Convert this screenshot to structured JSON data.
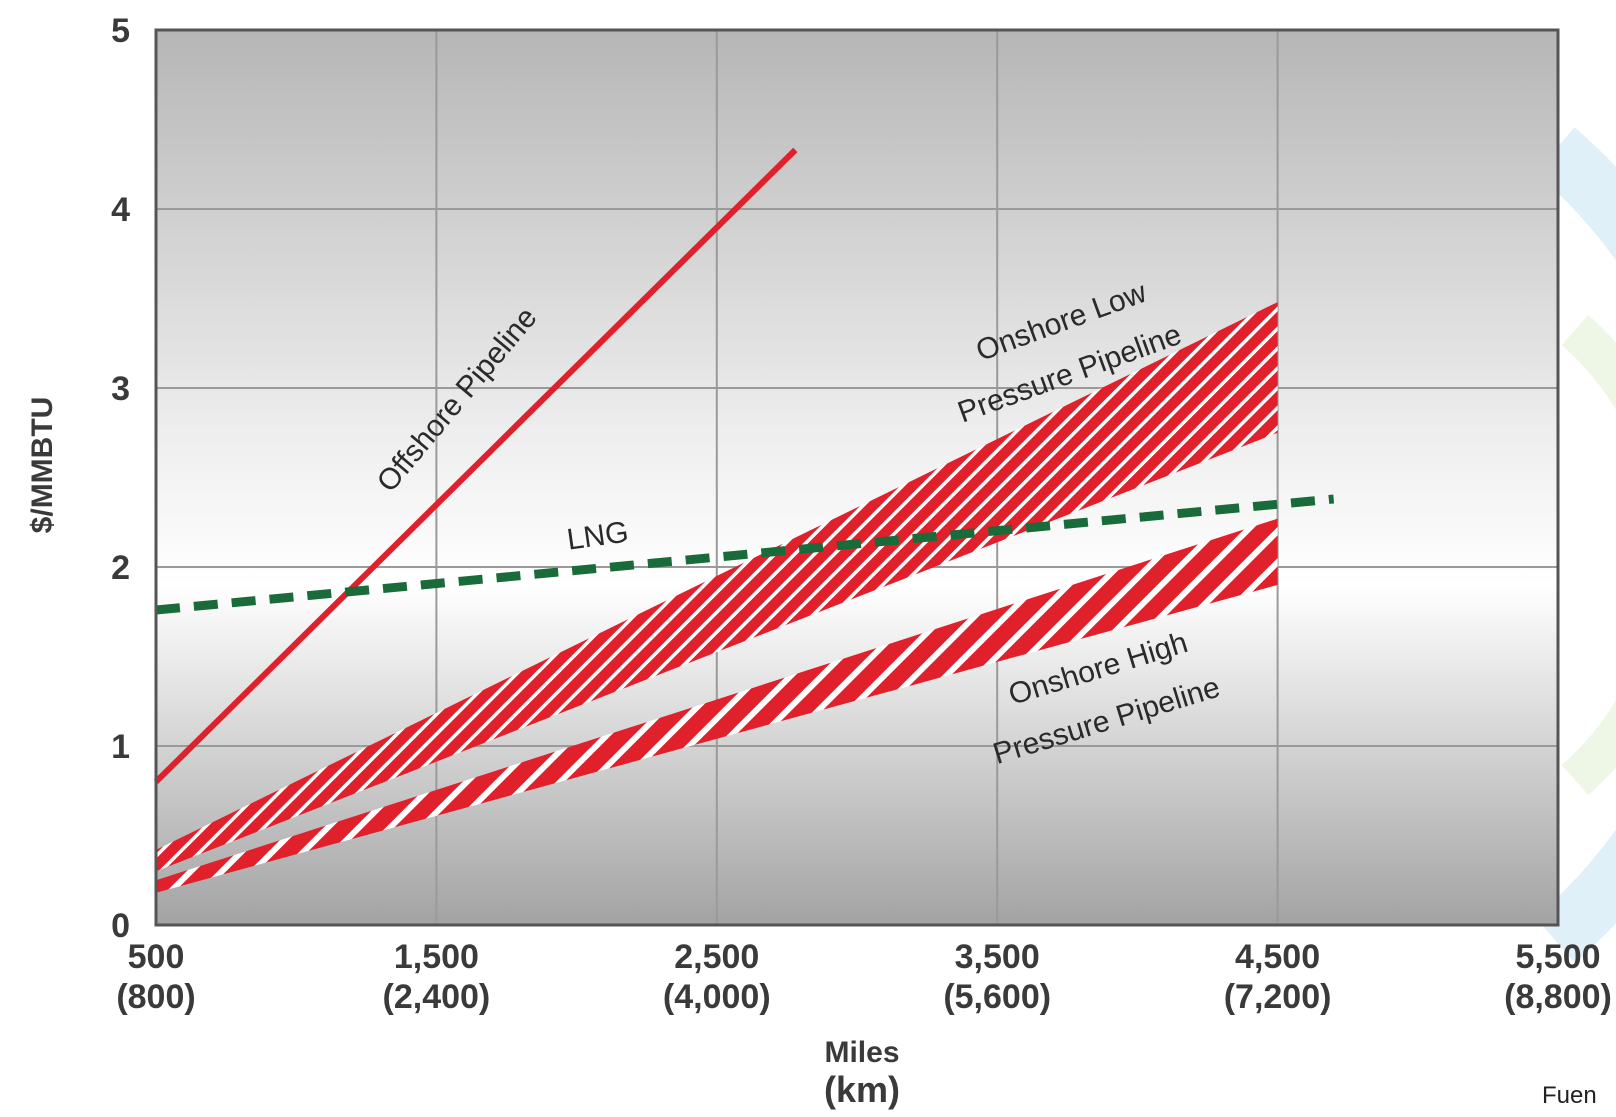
{
  "chart_data": {
    "type": "line",
    "xlabel": "Miles",
    "xlabel_secondary": "(km)",
    "ylabel": "$/MMBTU",
    "xlim": [
      500,
      5500
    ],
    "ylim": [
      0,
      5
    ],
    "grid": true,
    "x_ticks": [
      {
        "value": 500,
        "miles": "500",
        "km": "(800)"
      },
      {
        "value": 1500,
        "miles": "1,500",
        "km": "(2,400)"
      },
      {
        "value": 2500,
        "miles": "2,500",
        "km": "(4,000)"
      },
      {
        "value": 3500,
        "miles": "3,500",
        "km": "(5,600)"
      },
      {
        "value": 4500,
        "miles": "4,500",
        "km": "(7,200)"
      },
      {
        "value": 5500,
        "miles": "5,500",
        "km": "(8,800)"
      }
    ],
    "y_ticks": [
      "0",
      "1",
      "2",
      "3",
      "4",
      "5"
    ],
    "series": [
      {
        "name": "Offshore Pipeline",
        "style": "solid",
        "color": "#e0202a",
        "x": [
          500,
          2780
        ],
        "y": [
          0.8,
          4.33
        ]
      },
      {
        "name": "LNG",
        "style": "dashed",
        "color": "#1a6b3a",
        "x": [
          500,
          4700
        ],
        "y": [
          1.76,
          2.38
        ]
      },
      {
        "name": "Onshore Low Pressure Pipeline",
        "style": "band-fine-hatch",
        "color": "#e0202a",
        "x": [
          500,
          4500
        ],
        "y_low": [
          0.3,
          2.75
        ],
        "y_high": [
          0.42,
          3.48
        ]
      },
      {
        "name": "Onshore High Pressure Pipeline",
        "style": "band-bold-hatch",
        "color": "#e0202a",
        "x": [
          500,
          4500
        ],
        "y_low": [
          0.18,
          1.9
        ],
        "y_high": [
          0.25,
          2.27
        ]
      }
    ],
    "annotations": [
      {
        "text": "Offshore Pipeline",
        "x": 1600,
        "y": 2.9,
        "angle": -50
      },
      {
        "text": "LNG",
        "x": 2080,
        "y": 2.12,
        "angle": -8
      },
      {
        "text": "Onshore Low",
        "x": 3740,
        "y": 3.32,
        "angle": -20
      },
      {
        "text": "Pressure Pipeline",
        "x": 3770,
        "y": 3.03,
        "angle": -20
      },
      {
        "text": "Onshore High",
        "x": 3870,
        "y": 1.38,
        "angle": -17
      },
      {
        "text": "Pressure Pipeline",
        "x": 3900,
        "y": 1.09,
        "angle": -17
      }
    ],
    "source_text": "Fuen"
  }
}
